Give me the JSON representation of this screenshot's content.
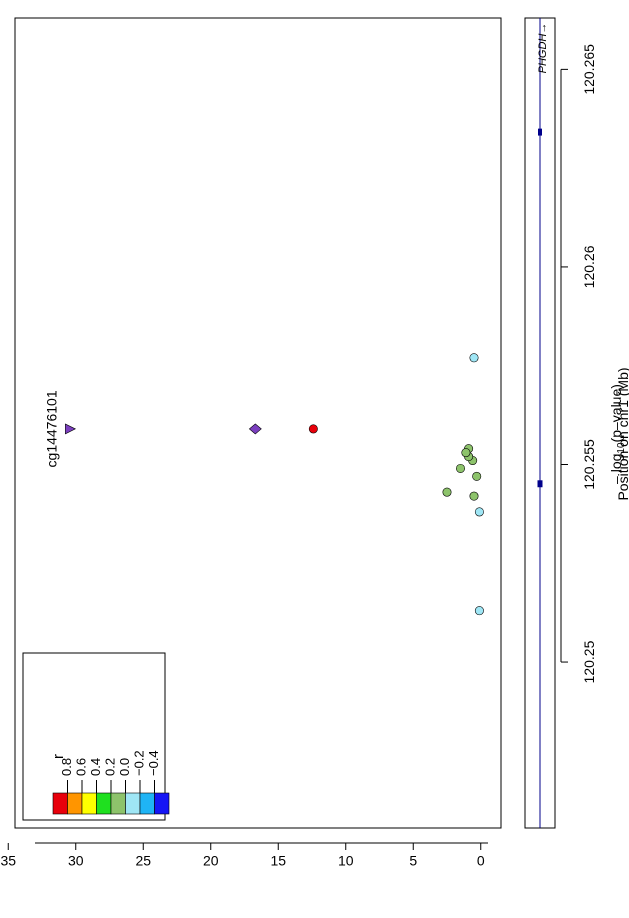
{
  "chart_data": {
    "type": "scatter",
    "title": "",
    "x_axis": {
      "label": "Position on chr1 (Mb)",
      "ticks": [
        "120.25",
        "120.255",
        "120.26",
        "120.265"
      ],
      "tick_values": [
        120.25,
        120.255,
        120.26,
        120.265
      ],
      "range": [
        120.2458,
        120.2663
      ]
    },
    "y_axis": {
      "label_prefix": "– log",
      "label_sub": "10",
      "label_suffix": "(p–value)",
      "ticks": [
        "0",
        "5",
        "10",
        "15",
        "20",
        "25",
        "30",
        "35"
      ],
      "tick_values": [
        0,
        5,
        10,
        15,
        20,
        25,
        30,
        35
      ],
      "range": [
        -1.5,
        34.5
      ]
    },
    "points": [
      {
        "x": 120.2559,
        "y": 30.4,
        "shape": "triangle",
        "color": "#7B3FBF",
        "label": "cg14476101"
      },
      {
        "x": 120.2559,
        "y": 16.7,
        "shape": "diamond",
        "color": "#7B3FBF"
      },
      {
        "x": 120.2559,
        "y": 12.4,
        "shape": "circle",
        "color": "#E8000B"
      },
      {
        "x": 120.2543,
        "y": 2.5,
        "shape": "circle",
        "color": "#8DC36B"
      },
      {
        "x": 120.2549,
        "y": 1.5,
        "shape": "circle",
        "color": "#8DC36B"
      },
      {
        "x": 120.2542,
        "y": 0.5,
        "shape": "circle",
        "color": "#8DC36B"
      },
      {
        "x": 120.2547,
        "y": 0.3,
        "shape": "circle",
        "color": "#8DC36B"
      },
      {
        "x": 120.2551,
        "y": 0.6,
        "shape": "circle",
        "color": "#8DC36B"
      },
      {
        "x": 120.2552,
        "y": 0.9,
        "shape": "circle",
        "color": "#8DC36B"
      },
      {
        "x": 120.2554,
        "y": 0.9,
        "shape": "circle",
        "color": "#8DC36B"
      },
      {
        "x": 120.2553,
        "y": 1.1,
        "shape": "circle",
        "color": "#8DC36B"
      },
      {
        "x": 120.2538,
        "y": 0.1,
        "shape": "circle",
        "color": "#9FE6F5"
      },
      {
        "x": 120.2513,
        "y": 0.1,
        "shape": "circle",
        "color": "#9FE6F5"
      },
      {
        "x": 120.2577,
        "y": 0.5,
        "shape": "circle",
        "color": "#9FE6F5"
      }
    ],
    "legend": {
      "title": "r",
      "placement": "bottom-left",
      "colors": [
        "#E8000B",
        "#FF9500",
        "#FFFF00",
        "#1FE01F",
        "#8DC36B",
        "#9FE6F5",
        "#1FB4F5",
        "#1515F5"
      ],
      "labels": [
        "0.8",
        "0.6",
        "0.4",
        "0.2",
        "0.0",
        "−0.2",
        "−0.4"
      ]
    },
    "gene_track": {
      "gene": "PHGDH",
      "arrow": "→",
      "start": 120.2455,
      "end": 120.2663,
      "exons": [
        {
          "start": 120.2545,
          "end": 120.2546
        },
        {
          "start": 120.2634,
          "end": 120.2635
        }
      ],
      "color": "#00008B"
    }
  }
}
